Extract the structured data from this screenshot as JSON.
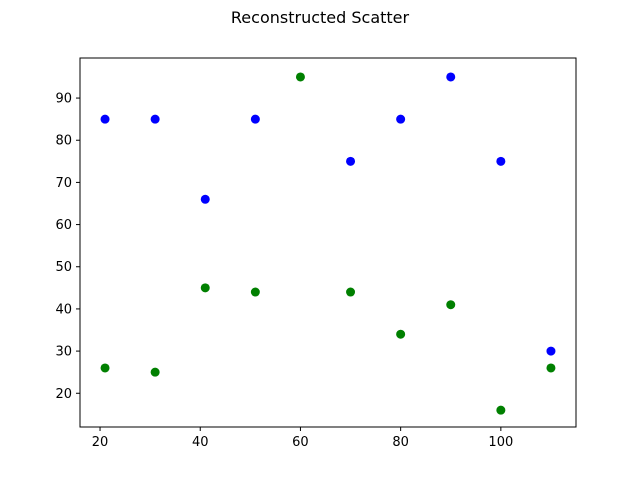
{
  "chart_data": {
    "type": "scatter",
    "title": "Reconstructed Scatter",
    "xlabel": "",
    "ylabel": "",
    "xlim": [
      16,
      115
    ],
    "ylim": [
      12,
      99.5
    ],
    "xticks": [
      20,
      40,
      60,
      80,
      100
    ],
    "yticks": [
      20,
      30,
      40,
      50,
      60,
      70,
      80,
      90
    ],
    "grid": false,
    "legend": "none",
    "series": [
      {
        "color": "#0000ff",
        "x": [
          21,
          31,
          41,
          51,
          70,
          80,
          90,
          100,
          110
        ],
        "y": [
          85,
          85,
          66,
          85,
          75,
          85,
          95,
          75,
          30
        ]
      },
      {
        "color": "#008000",
        "x": [
          21,
          31,
          41,
          51,
          60,
          70,
          80,
          90,
          100,
          110
        ],
        "y": [
          26,
          25,
          45,
          44,
          95,
          44,
          34,
          41,
          16,
          26
        ]
      }
    ]
  }
}
